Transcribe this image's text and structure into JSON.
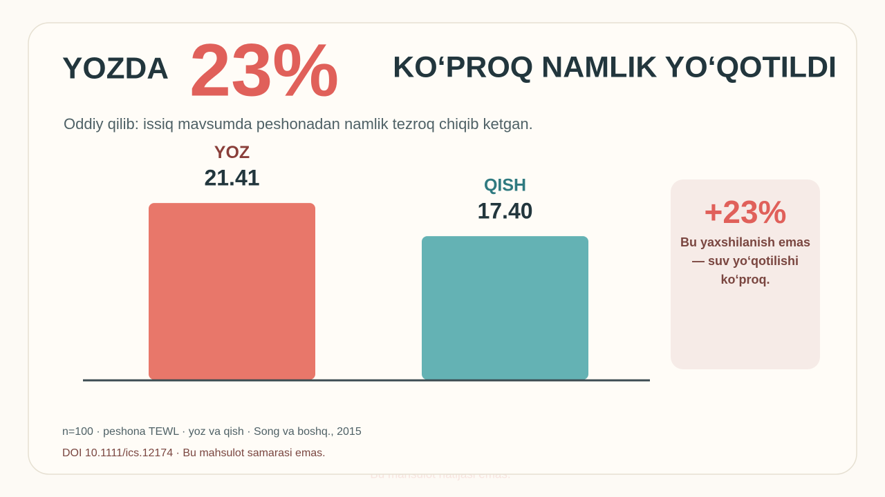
{
  "header": {
    "title_before": "YOZDA",
    "title_highlight": "23%",
    "title_after": "KO‘PROQ NAMLIK YO‘QOTILDI",
    "subtitle": "Oddiy qilib: issiq mavsumda peshonadan namlik tezroq chiqib ketgan."
  },
  "chart_data": {
    "type": "bar",
    "categories": [
      "YOZ",
      "QISH"
    ],
    "values": [
      21.41,
      17.4
    ],
    "value_labels": [
      "21.41",
      "17.40"
    ],
    "colors": [
      "#e8776a",
      "#64b2b4"
    ],
    "label_colors": [
      "#8a3f3a",
      "#2f7a80"
    ]
  },
  "callout": {
    "value": "+23%",
    "text": "Bu yaxshilanish emas — suv yo‘qotilishi ko‘proq."
  },
  "footer": {
    "source": "n=100 · peshona TEWL · yoz va qish · Song va boshq., 2015",
    "note": "DOI 10.1111/ics.12174 · Bu mahsulot samarasi emas."
  },
  "watermark": "Bu mahsulot natijasi emas."
}
